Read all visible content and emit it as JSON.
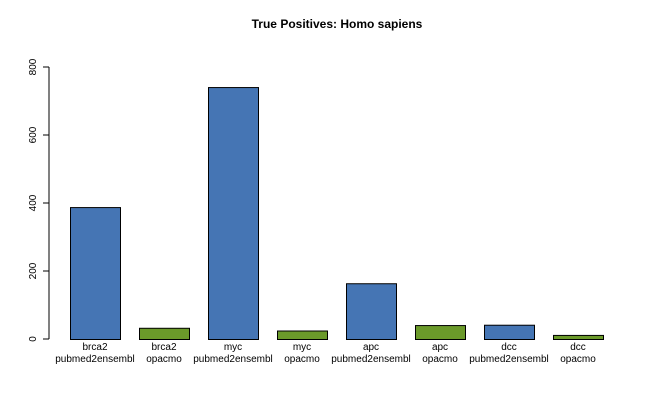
{
  "chart_data": {
    "type": "bar",
    "title": "True Positives: Homo sapiens",
    "xlabel": "",
    "ylabel": "",
    "ylim": [
      0,
      800
    ],
    "yticks": [
      "0",
      "200",
      "400",
      "600",
      "800"
    ],
    "grid": false,
    "categories": [
      [
        "brca2",
        "pubmed2ensembl"
      ],
      [
        "brca2",
        "opacmo"
      ],
      [
        "myc",
        "pubmed2ensembl"
      ],
      [
        "myc",
        "opacmo"
      ],
      [
        "apc",
        "pubmed2ensembl"
      ],
      [
        "apc",
        "opacmo"
      ],
      [
        "dcc",
        "pubmed2ensembl"
      ],
      [
        "dcc",
        "opacmo"
      ]
    ],
    "values": [
      388,
      33,
      741,
      25,
      164,
      41,
      42,
      12
    ],
    "bar_colors": [
      "#4575b4",
      "#6b9a2a",
      "#4575b4",
      "#6b9a2a",
      "#4575b4",
      "#6b9a2a",
      "#4575b4",
      "#6b9a2a"
    ],
    "bar_border_color": "#000000"
  }
}
